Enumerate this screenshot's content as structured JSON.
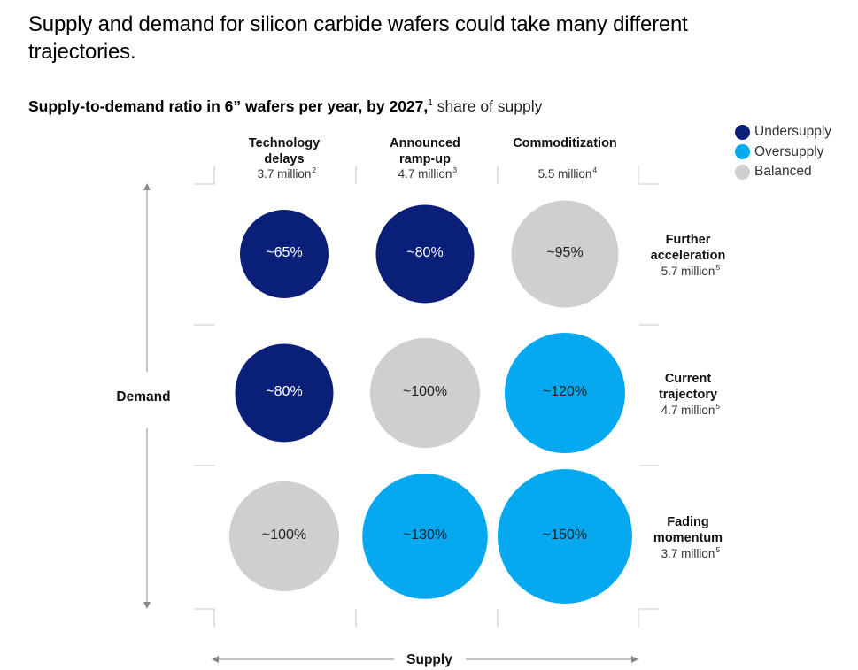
{
  "title": "Supply and demand for silicon carbide wafers could take many different trajectories.",
  "subtitle": {
    "bold": "Supply-to-demand ratio in 6” wafers per year, by 2027,",
    "footnote": "1",
    "rest": " share of supply"
  },
  "legend": [
    {
      "label": "Undersupply",
      "color": "#0a1f78"
    },
    {
      "label": "Oversupply",
      "color": "#06a9f0"
    },
    {
      "label": "Balanced",
      "color": "#cfcfcf"
    }
  ],
  "chart_data": {
    "type": "bubble-matrix",
    "xlabel": "Supply",
    "ylabel": "Demand",
    "supply_scenarios": [
      {
        "name_lines": [
          "Technology",
          "delays"
        ],
        "value": "3.7 million",
        "footnote": "2"
      },
      {
        "name_lines": [
          "Announced",
          "ramp-up"
        ],
        "value": "4.7 million",
        "footnote": "3"
      },
      {
        "name_lines": [
          "Commoditization"
        ],
        "value": "5.5 million",
        "footnote": "4"
      }
    ],
    "demand_scenarios": [
      {
        "name_lines": [
          "Further",
          "acceleration"
        ],
        "value": "5.7 million",
        "footnote": "5"
      },
      {
        "name_lines": [
          "Current",
          "trajectory"
        ],
        "value": "4.7 million",
        "footnote": "5"
      },
      {
        "name_lines": [
          "Fading",
          "momentum"
        ],
        "value": "3.7 million",
        "footnote": "5"
      }
    ],
    "cells": [
      [
        {
          "ratio": 65,
          "label": "~65%",
          "status": "undersupply"
        },
        {
          "ratio": 80,
          "label": "~80%",
          "status": "undersupply"
        },
        {
          "ratio": 95,
          "label": "~95%",
          "status": "balanced"
        }
      ],
      [
        {
          "ratio": 80,
          "label": "~80%",
          "status": "undersupply"
        },
        {
          "ratio": 100,
          "label": "~100%",
          "status": "balanced"
        },
        {
          "ratio": 120,
          "label": "~120%",
          "status": "oversupply"
        }
      ],
      [
        {
          "ratio": 100,
          "label": "~100%",
          "status": "balanced"
        },
        {
          "ratio": 130,
          "label": "~130%",
          "status": "oversupply"
        },
        {
          "ratio": 150,
          "label": "~150%",
          "status": "oversupply"
        }
      ]
    ],
    "status_colors": {
      "undersupply": "#0a1f78",
      "oversupply": "#06a9f0",
      "balanced": "#cfcfcf"
    }
  }
}
